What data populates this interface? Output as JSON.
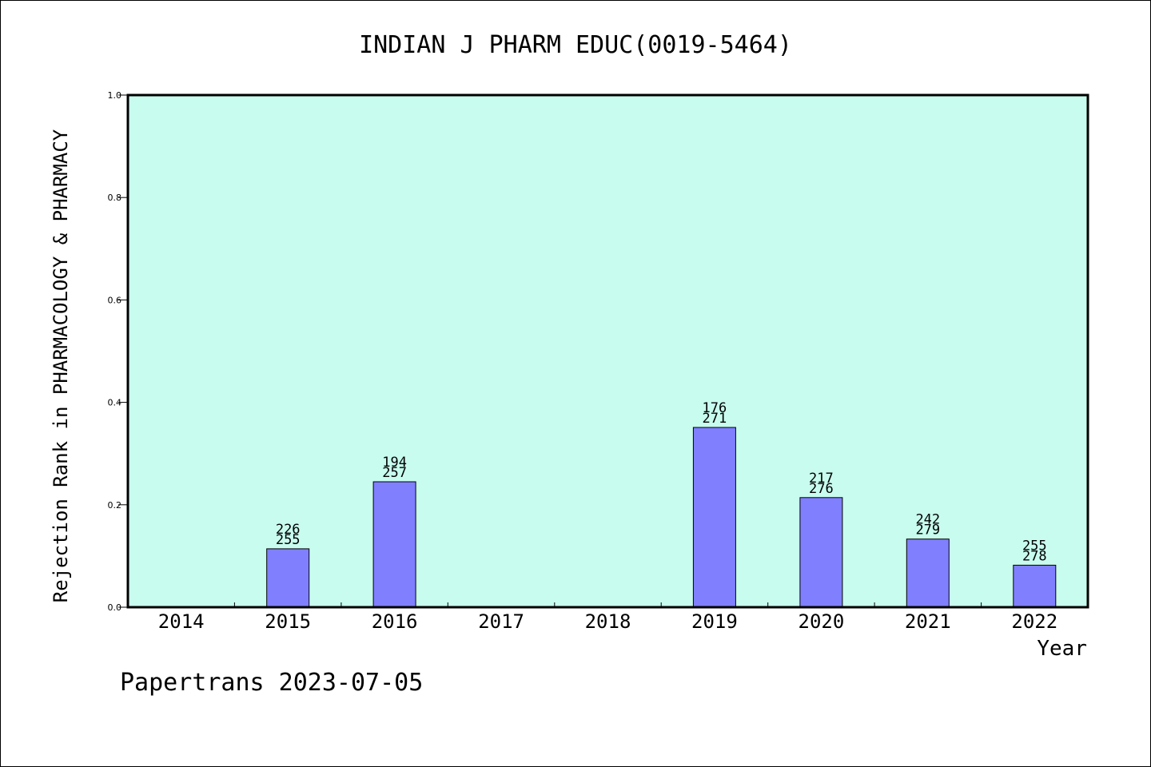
{
  "chart_data": {
    "type": "bar",
    "title": "INDIAN J PHARM EDUC(0019-5464)",
    "xlabel": "Year",
    "ylabel": "Rejection Rank in PHARMACOLOGY & PHARMACY",
    "categories": [
      "2014",
      "2015",
      "2016",
      "2017",
      "2018",
      "2019",
      "2020",
      "2021",
      "2022"
    ],
    "values": [
      0,
      0.114,
      0.245,
      0,
      0,
      0.351,
      0.214,
      0.133,
      0.082
    ],
    "bar_labels": [
      {
        "rank": "",
        "total": ""
      },
      {
        "rank": "226",
        "total": "255"
      },
      {
        "rank": "194",
        "total": "257"
      },
      {
        "rank": "",
        "total": ""
      },
      {
        "rank": "",
        "total": ""
      },
      {
        "rank": "176",
        "total": "271"
      },
      {
        "rank": "217",
        "total": "276"
      },
      {
        "rank": "242",
        "total": "279"
      },
      {
        "rank": "255",
        "total": "278"
      }
    ],
    "ylim": [
      0,
      1.0
    ],
    "yticks": [
      "0.0",
      "0.2",
      "0.4",
      "0.6",
      "0.8",
      "1.0"
    ],
    "grid": false,
    "colors": {
      "plot_background": "#c8fcee",
      "bar_fill": "#8080ff",
      "bar_stroke": "#000000"
    }
  },
  "footer": {
    "credit": "Papertrans 2023-07-05"
  }
}
